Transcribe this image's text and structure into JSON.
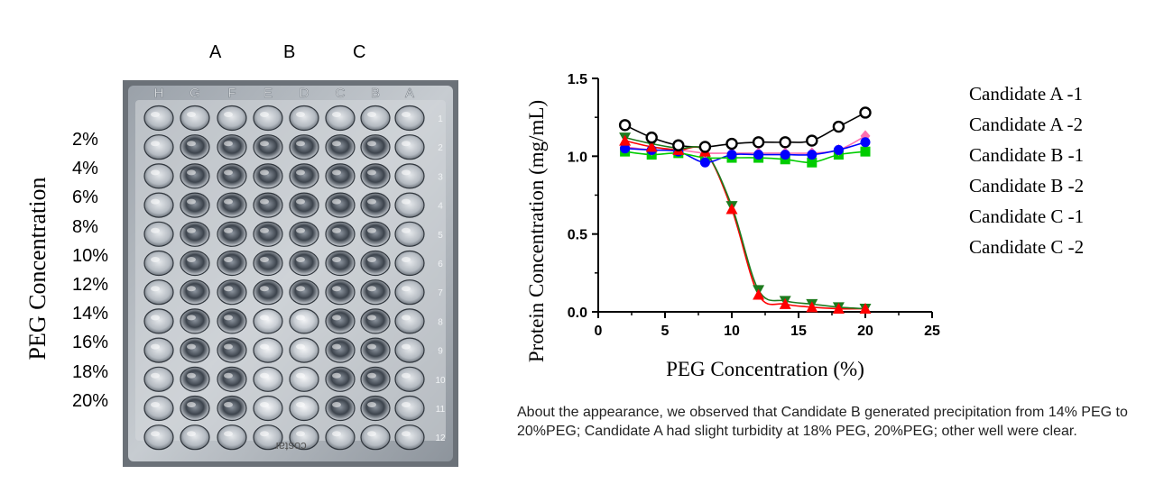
{
  "photo": {
    "column_labels": [
      "A",
      "B",
      "C"
    ],
    "row_labels": [
      "2%",
      "4%",
      "6%",
      "8%",
      "10%",
      "12%",
      "14%",
      "16%",
      "18%",
      "20%"
    ],
    "ylabel": "PEG Concentration",
    "plate_row_letters": [
      "H",
      "G",
      "F",
      "E",
      "D",
      "C",
      "B",
      "A"
    ],
    "plate_col_numbers": [
      "1",
      "2",
      "3",
      "4",
      "5",
      "6",
      "7",
      "8",
      "9",
      "10",
      "11",
      "12"
    ],
    "brand_text": "costar"
  },
  "chart_data": {
    "type": "scatter",
    "xlabel": "PEG Concentration (%)",
    "ylabel": "Protein Concentration (mg/mL)",
    "xlim": [
      0,
      25
    ],
    "ylim": [
      0,
      1.5
    ],
    "xticks": [
      "0",
      "5",
      "10",
      "15",
      "20",
      "25"
    ],
    "yticks": [
      "0.0",
      "0.5",
      "1.0",
      "1.5"
    ],
    "grid": false,
    "legend_position": "right",
    "series": [
      {
        "name": "Candidate A -1",
        "marker": "circle-open",
        "color": "#000000",
        "x": [
          2,
          4,
          6,
          8,
          10,
          12,
          14,
          16,
          18,
          20
        ],
        "y": [
          1.2,
          1.12,
          1.07,
          1.06,
          1.08,
          1.09,
          1.09,
          1.1,
          1.19,
          1.28
        ]
      },
      {
        "name": "Candidate A -2",
        "marker": "diamond",
        "color": "#ff6fb0",
        "x": [
          2,
          4,
          6,
          8,
          10,
          12,
          14,
          16,
          18,
          20
        ],
        "y": [
          1.06,
          1.04,
          1.04,
          1.02,
          1.02,
          1.02,
          1.02,
          1.02,
          1.04,
          1.13
        ]
      },
      {
        "name": "Candidate B -1",
        "marker": "triangle-up",
        "color": "#ff0000",
        "x": [
          2,
          4,
          6,
          8,
          10,
          12,
          14,
          16,
          18,
          20
        ],
        "y": [
          1.1,
          1.06,
          1.04,
          1.03,
          0.66,
          0.11,
          0.05,
          0.03,
          0.02,
          0.02
        ]
      },
      {
        "name": "Candidate B -2",
        "marker": "triangle-down",
        "color": "#1e7b1e",
        "x": [
          2,
          4,
          6,
          8,
          10,
          12,
          14,
          16,
          18,
          20
        ],
        "y": [
          1.12,
          1.08,
          1.05,
          1.03,
          0.68,
          0.14,
          0.07,
          0.05,
          0.03,
          0.02
        ]
      },
      {
        "name": "Candidate C -1",
        "marker": "circle",
        "color": "#0000ff",
        "x": [
          2,
          4,
          6,
          8,
          10,
          12,
          14,
          16,
          18,
          20
        ],
        "y": [
          1.05,
          1.04,
          1.03,
          0.96,
          1.01,
          1.01,
          1.01,
          1.01,
          1.04,
          1.09
        ]
      },
      {
        "name": "Candidate C -2",
        "marker": "square",
        "color": "#00cc00",
        "x": [
          2,
          4,
          6,
          8,
          10,
          12,
          14,
          16,
          18,
          20
        ],
        "y": [
          1.03,
          1.01,
          1.02,
          0.99,
          0.99,
          0.99,
          0.98,
          0.96,
          1.01,
          1.03
        ]
      }
    ]
  },
  "caption": "About the appearance, we observed that Candidate B generated precipitation from 14% PEG to 20%PEG;  Candidate A had slight turbidity at 18% PEG, 20%PEG; other well were clear."
}
